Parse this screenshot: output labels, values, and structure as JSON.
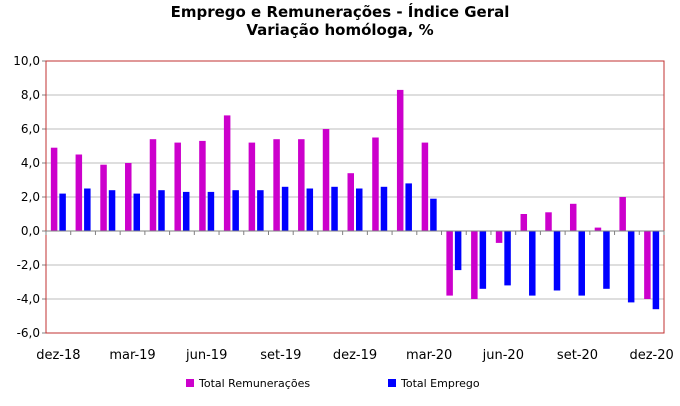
{
  "chart_data": {
    "type": "bar",
    "title": "Emprego e Remunerações - Índice Geral",
    "subtitle": "Variação homóloga, %",
    "xlabel": "",
    "ylabel": "",
    "ylim": [
      -6,
      10
    ],
    "yticks": [
      "10,0",
      "8,0",
      "6,0",
      "4,0",
      "2,0",
      "0,0",
      "-2,0",
      "-4,0",
      "-6,0"
    ],
    "grid": true,
    "legend_position": "bottom",
    "categories": [
      "dez-18",
      "jan-19",
      "fev-19",
      "mar-19",
      "abr-19",
      "mai-19",
      "jun-19",
      "jul-19",
      "ago-19",
      "set-19",
      "out-19",
      "nov-19",
      "dez-19",
      "jan-20",
      "fev-20",
      "mar-20",
      "abr-20",
      "mai-20",
      "jun-20",
      "jul-20",
      "ago-20",
      "set-20",
      "out-20",
      "nov-20",
      "dez-20"
    ],
    "tick_labels": [
      "dez-18",
      "mar-19",
      "jun-19",
      "set-19",
      "dez-19",
      "mar-20",
      "jun-20",
      "set-20",
      "dez-20"
    ],
    "series": [
      {
        "name": "Total Remunerações",
        "color": "#cc00cc",
        "values": [
          4.9,
          4.5,
          3.9,
          4.0,
          5.4,
          5.2,
          5.3,
          6.8,
          5.2,
          5.4,
          5.4,
          6.0,
          3.4,
          5.5,
          8.3,
          5.2,
          -3.8,
          -4.0,
          -0.7,
          1.0,
          1.1,
          1.6,
          0.2,
          2.0,
          -4.0
        ]
      },
      {
        "name": "Total Emprego",
        "color": "#0000ff",
        "values": [
          2.2,
          2.5,
          2.4,
          2.2,
          2.4,
          2.3,
          2.3,
          2.4,
          2.4,
          2.6,
          2.5,
          2.6,
          2.5,
          2.6,
          2.8,
          1.9,
          -2.3,
          -3.4,
          -3.2,
          -3.8,
          -3.5,
          -3.8,
          -3.4,
          -4.2,
          -4.6
        ]
      }
    ]
  }
}
